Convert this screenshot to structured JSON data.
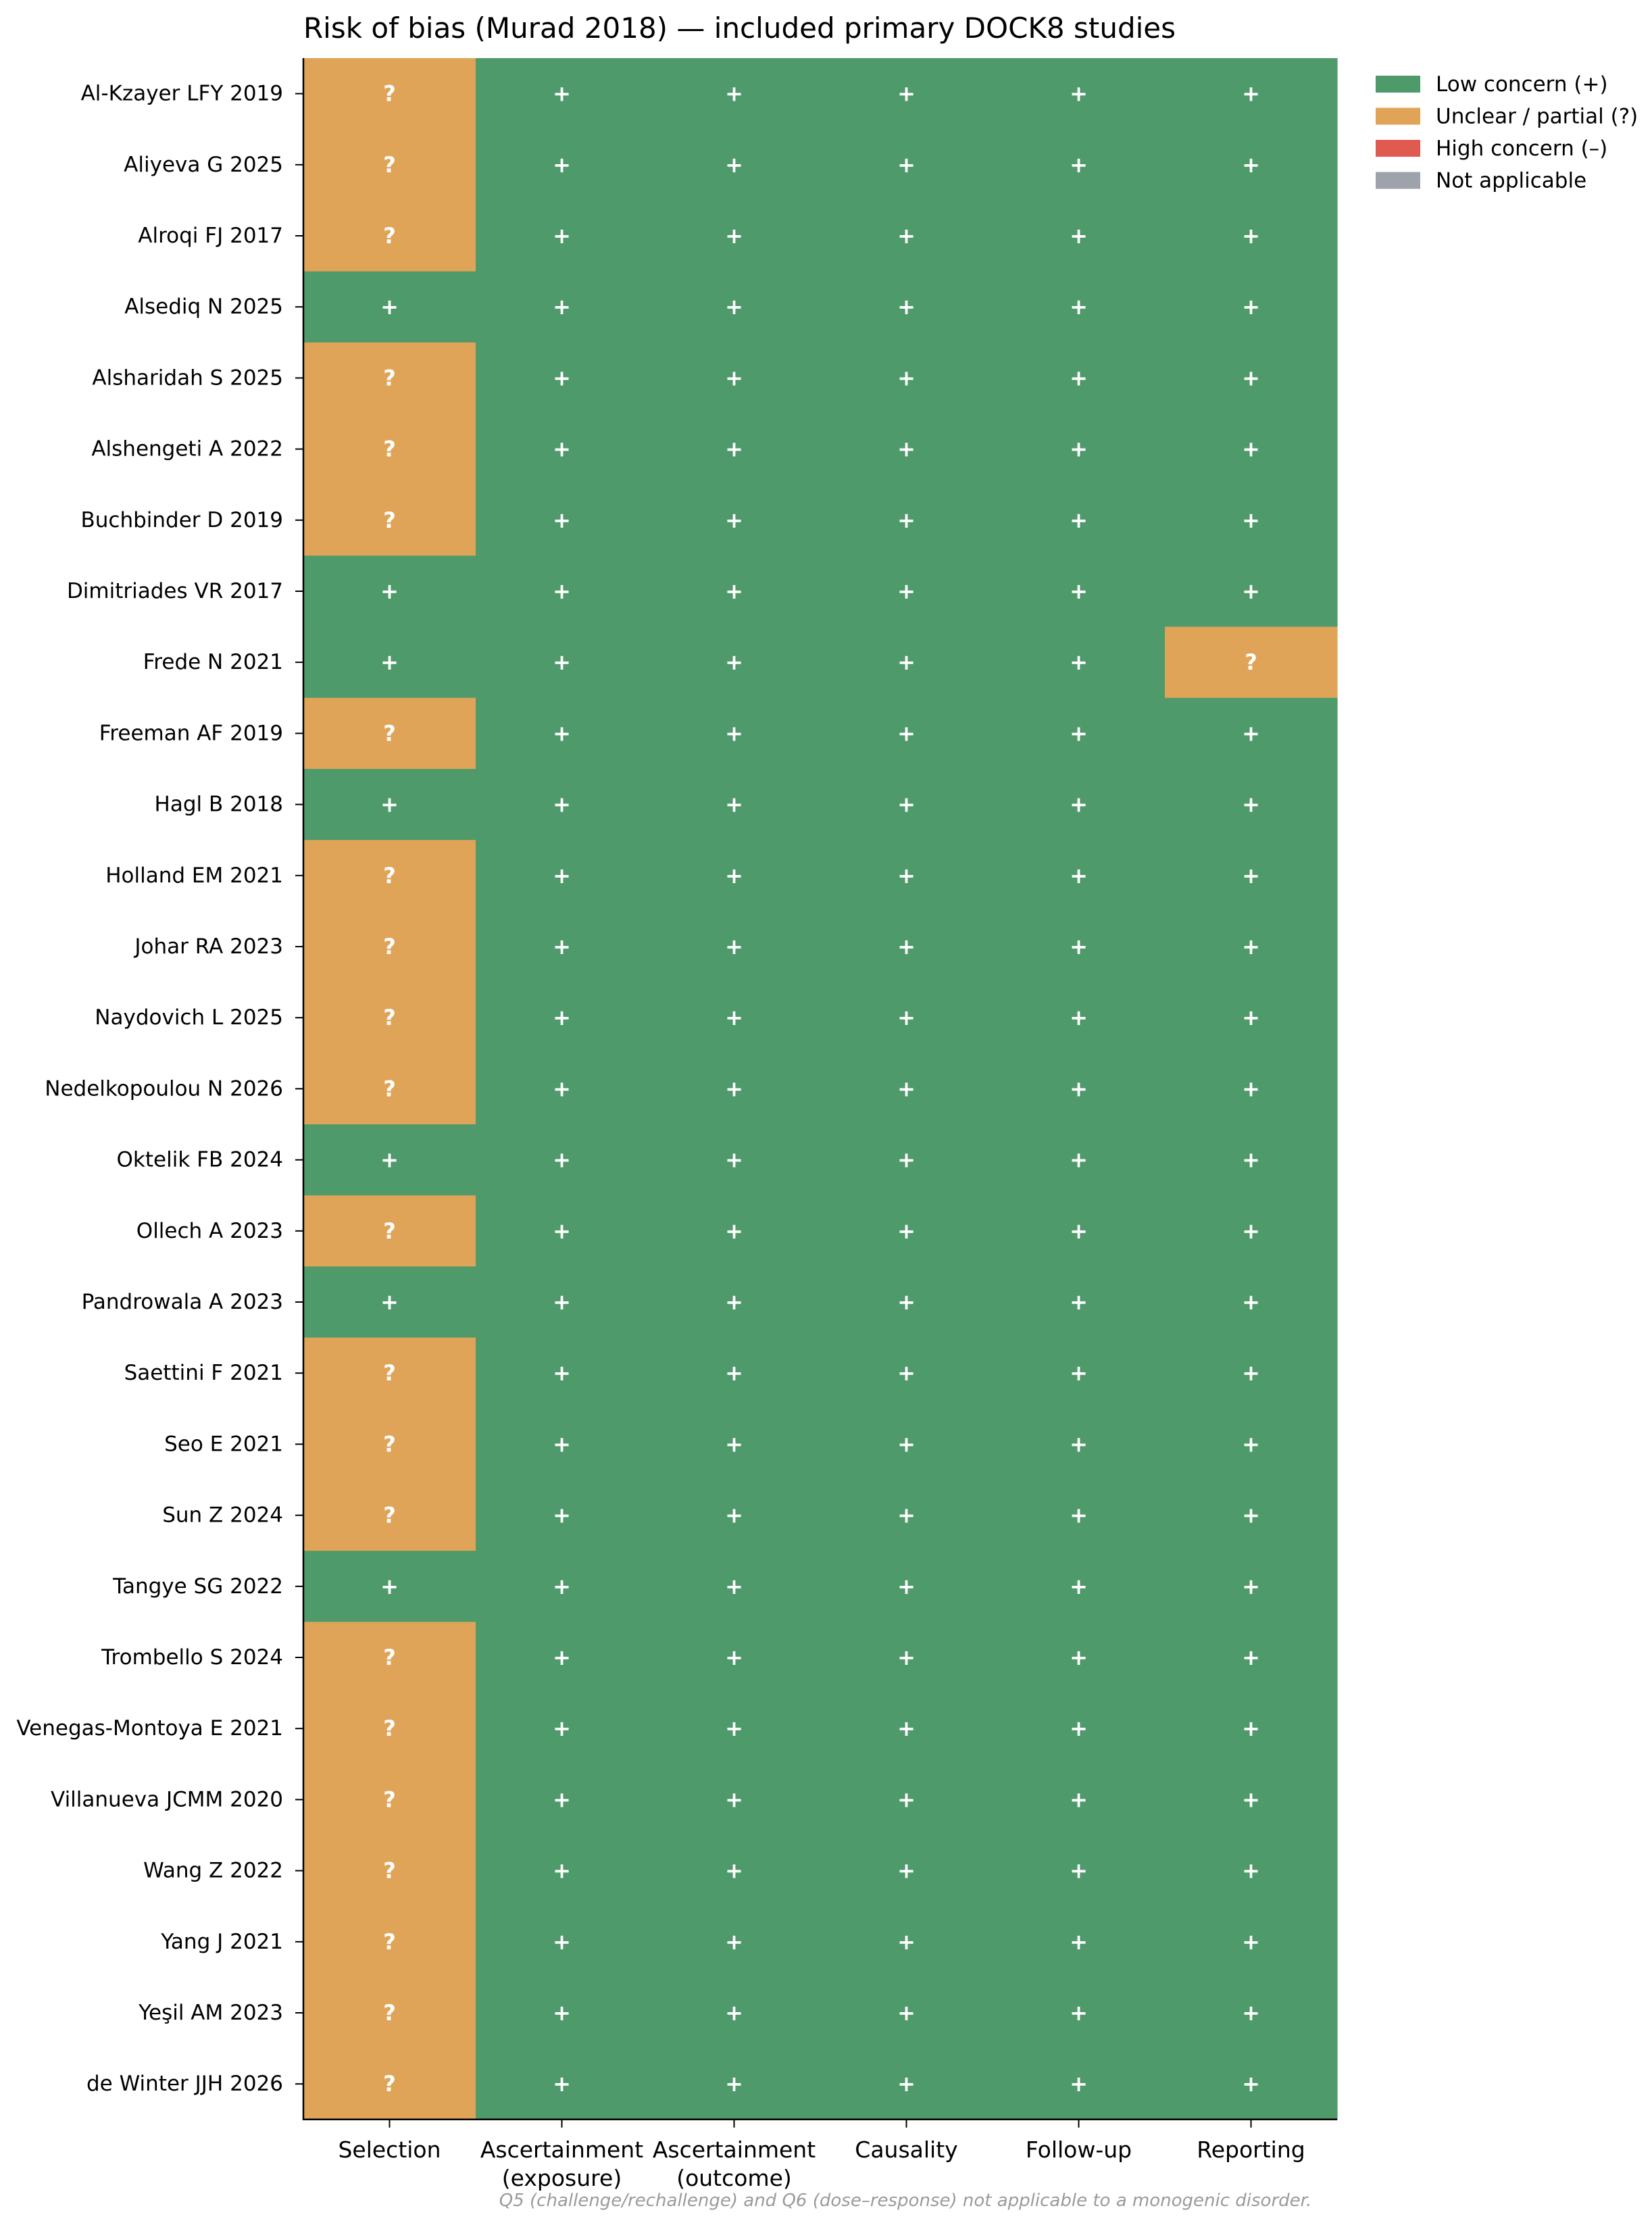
{
  "chart_data": {
    "type": "heatmap",
    "title": "Risk of bias (Murad 2018) — included primary DOCK8 studies",
    "footnote": "Q5 (challenge/rechallenge) and Q6 (dose–response) not applicable to a monogenic disorder.",
    "columns": [
      [
        "Selection"
      ],
      [
        "Ascertainment",
        "(exposure)"
      ],
      [
        "Ascertainment",
        "(outcome)"
      ],
      [
        "Causality"
      ],
      [
        "Follow-up"
      ],
      [
        "Reporting"
      ]
    ],
    "rows": [
      "Al-Kzayer LFY 2019",
      "Aliyeva G 2025",
      "Alroqi FJ 2017",
      "Alsediq N 2025",
      "Alsharidah S 2025",
      "Alshengeti A 2022",
      "Buchbinder D 2019",
      "Dimitriades VR 2017",
      "Frede N 2021",
      "Freeman AF 2019",
      "Hagl B 2018",
      "Holland EM 2021",
      "Johar RA 2023",
      "Naydovich L 2025",
      "Nedelkopoulou N 2026",
      "Oktelik FB 2024",
      "Ollech A 2023",
      "Pandrowala A 2023",
      "Saettini F 2021",
      "Seo E 2021",
      "Sun Z 2024",
      "Tangye SG 2022",
      "Trombello S 2024",
      "Venegas-Montoya E 2021",
      "Villanueva JCMM 2020",
      "Wang Z 2022",
      "Yang J 2021",
      "Yeşil AM 2023",
      "de Winter JJH 2026"
    ],
    "ratings": [
      [
        "?",
        "+",
        "+",
        "+",
        "+",
        "+"
      ],
      [
        "?",
        "+",
        "+",
        "+",
        "+",
        "+"
      ],
      [
        "?",
        "+",
        "+",
        "+",
        "+",
        "+"
      ],
      [
        "+",
        "+",
        "+",
        "+",
        "+",
        "+"
      ],
      [
        "?",
        "+",
        "+",
        "+",
        "+",
        "+"
      ],
      [
        "?",
        "+",
        "+",
        "+",
        "+",
        "+"
      ],
      [
        "?",
        "+",
        "+",
        "+",
        "+",
        "+"
      ],
      [
        "+",
        "+",
        "+",
        "+",
        "+",
        "+"
      ],
      [
        "+",
        "+",
        "+",
        "+",
        "+",
        "?"
      ],
      [
        "?",
        "+",
        "+",
        "+",
        "+",
        "+"
      ],
      [
        "+",
        "+",
        "+",
        "+",
        "+",
        "+"
      ],
      [
        "?",
        "+",
        "+",
        "+",
        "+",
        "+"
      ],
      [
        "?",
        "+",
        "+",
        "+",
        "+",
        "+"
      ],
      [
        "?",
        "+",
        "+",
        "+",
        "+",
        "+"
      ],
      [
        "?",
        "+",
        "+",
        "+",
        "+",
        "+"
      ],
      [
        "+",
        "+",
        "+",
        "+",
        "+",
        "+"
      ],
      [
        "?",
        "+",
        "+",
        "+",
        "+",
        "+"
      ],
      [
        "+",
        "+",
        "+",
        "+",
        "+",
        "+"
      ],
      [
        "?",
        "+",
        "+",
        "+",
        "+",
        "+"
      ],
      [
        "?",
        "+",
        "+",
        "+",
        "+",
        "+"
      ],
      [
        "?",
        "+",
        "+",
        "+",
        "+",
        "+"
      ],
      [
        "+",
        "+",
        "+",
        "+",
        "+",
        "+"
      ],
      [
        "?",
        "+",
        "+",
        "+",
        "+",
        "+"
      ],
      [
        "?",
        "+",
        "+",
        "+",
        "+",
        "+"
      ],
      [
        "?",
        "+",
        "+",
        "+",
        "+",
        "+"
      ],
      [
        "?",
        "+",
        "+",
        "+",
        "+",
        "+"
      ],
      [
        "?",
        "+",
        "+",
        "+",
        "+",
        "+"
      ],
      [
        "?",
        "+",
        "+",
        "+",
        "+",
        "+"
      ],
      [
        "?",
        "+",
        "+",
        "+",
        "+",
        "+"
      ]
    ],
    "legend": [
      {
        "symbol": "+",
        "label": "Low concern (+)",
        "color": "#4e9a6a"
      },
      {
        "symbol": "?",
        "label": "Unclear / partial (?)",
        "color": "#e0a458"
      },
      {
        "symbol": "–",
        "label": "High concern (–)",
        "color": "#e05a4f"
      },
      {
        "symbol": "NA",
        "label": "Not applicable",
        "color": "#9ea3ab"
      }
    ],
    "legend_position": "upper right, outside plot"
  }
}
